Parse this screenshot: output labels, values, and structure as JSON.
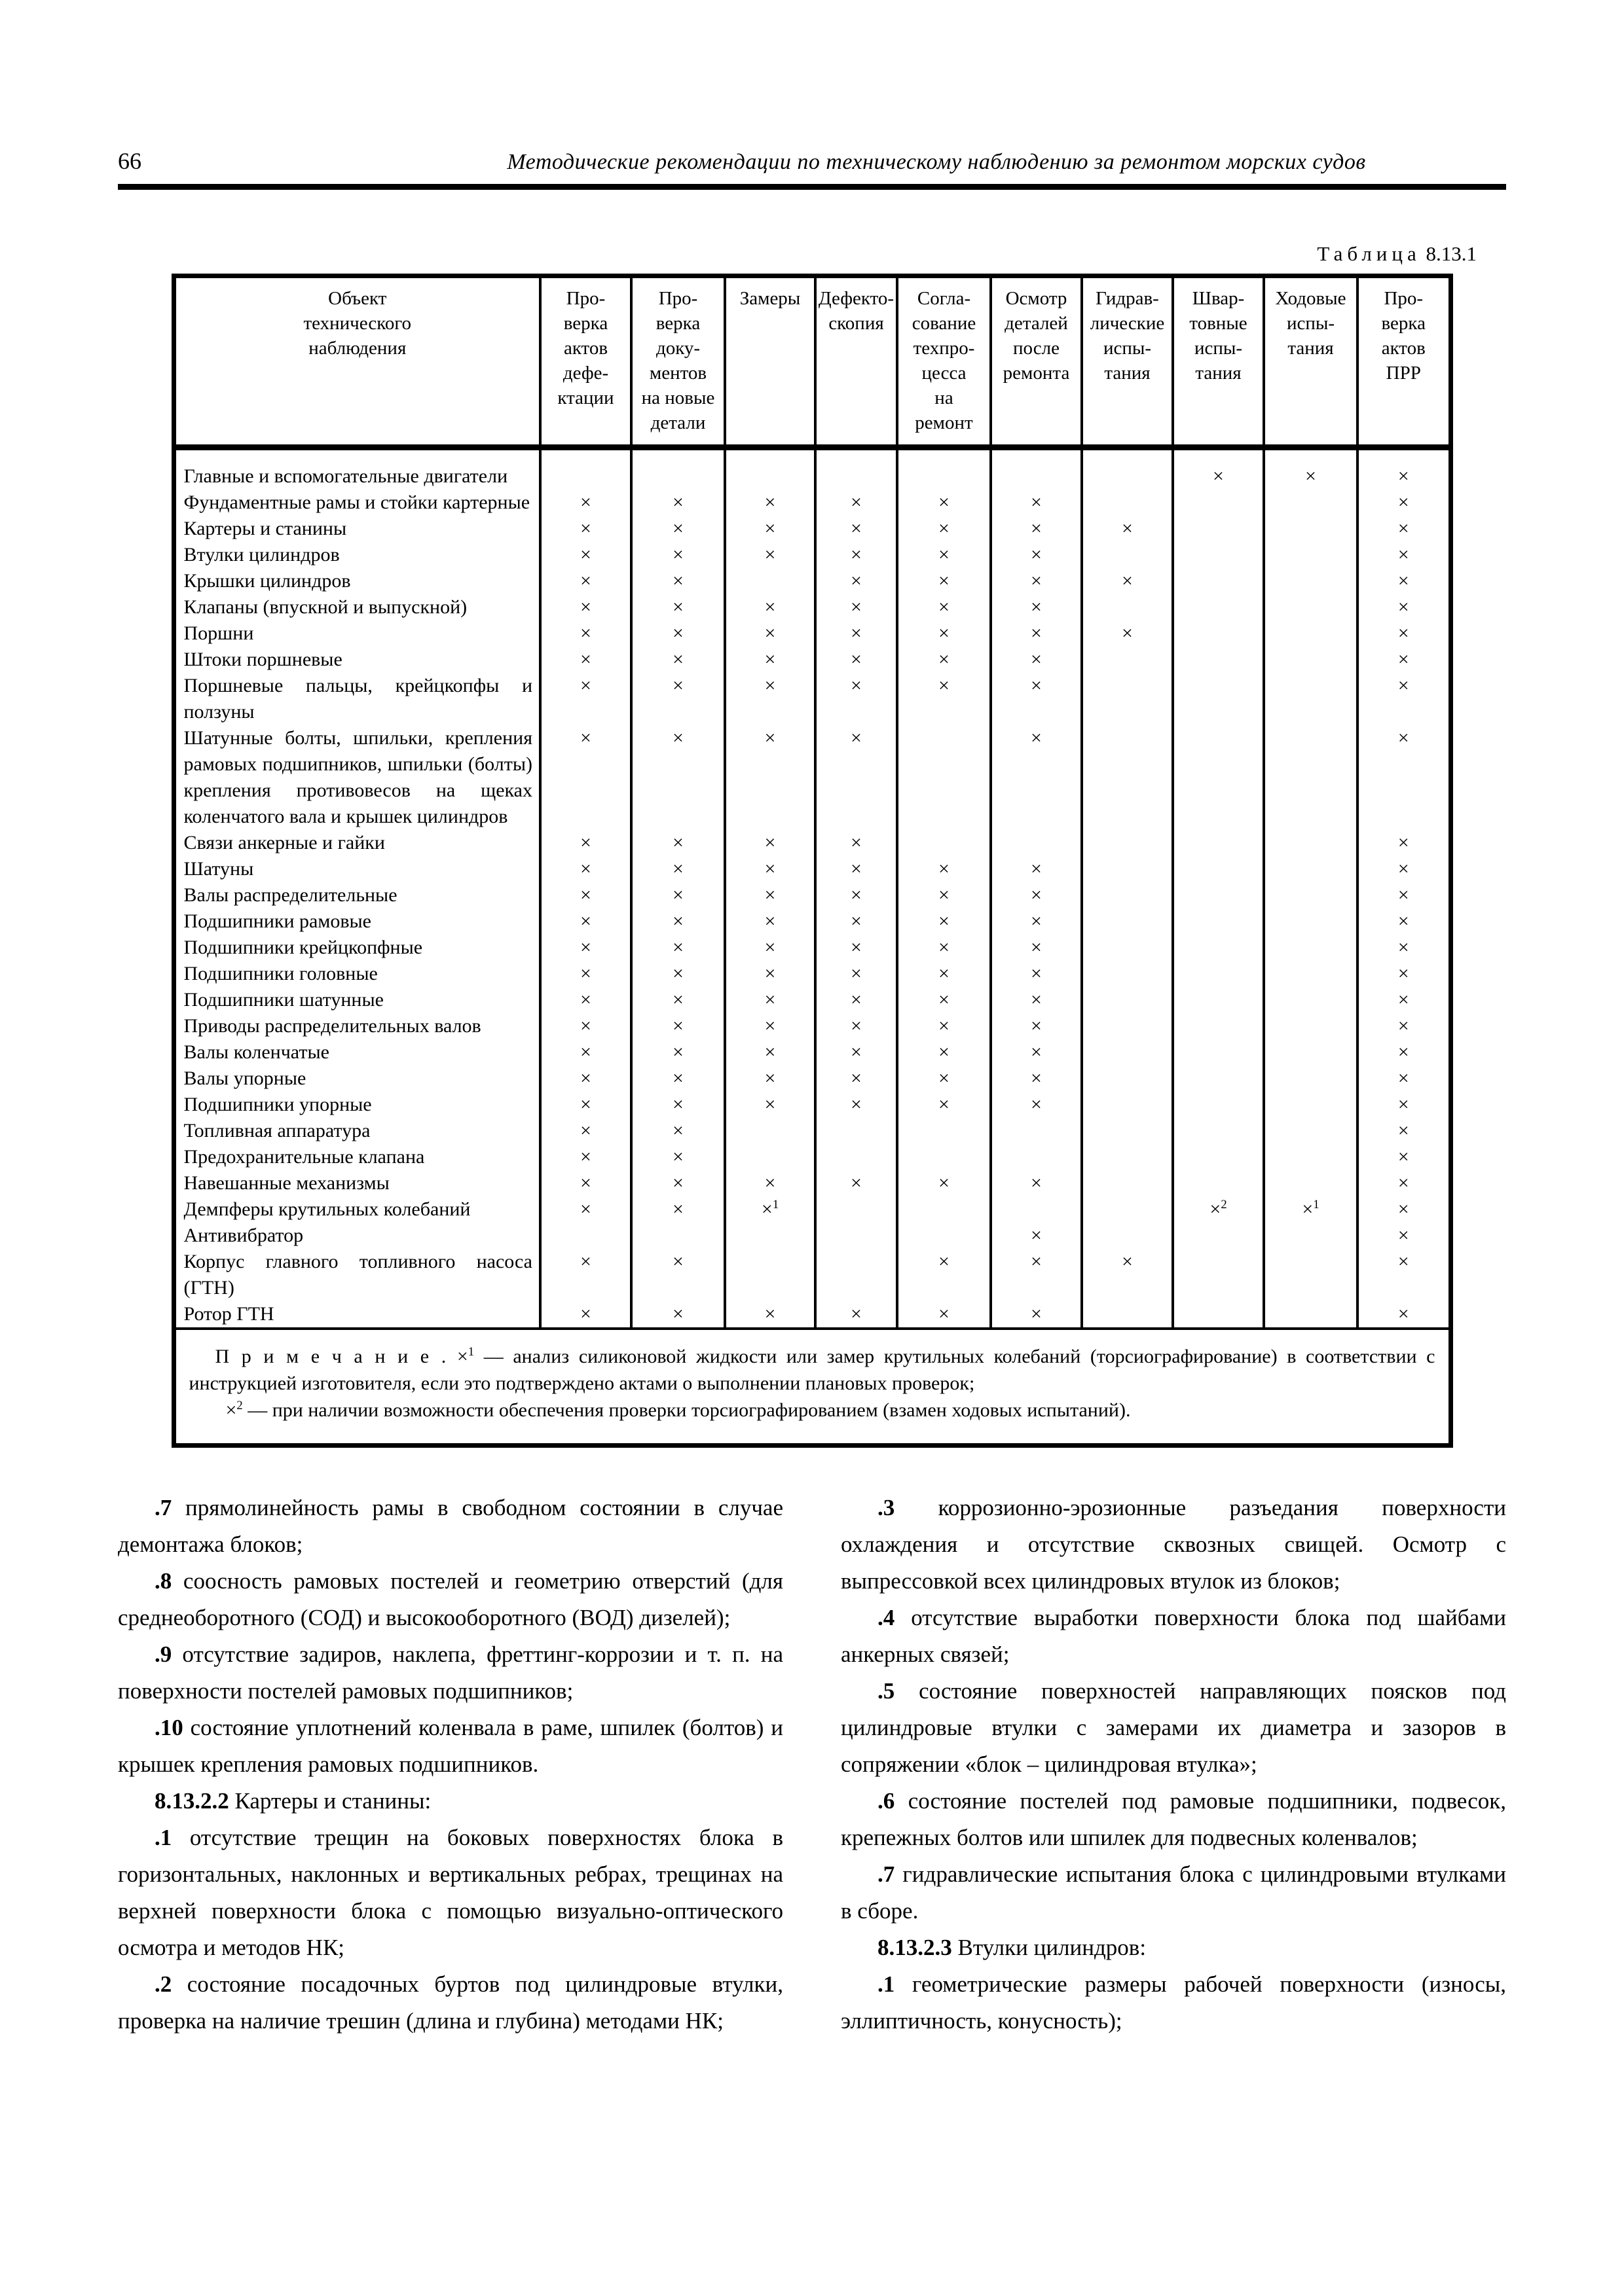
{
  "header": {
    "page_number": "66",
    "title": "Методические рекомендации по техническому наблюдению за ремонтом морских судов"
  },
  "table": {
    "caption_label": "Таблица",
    "caption_number": "8.13.1",
    "columns": [
      "Объект\nтехнического\nнаблюдения",
      "Про-\nверка\nактов\nдефе-\nктации",
      "Про-\nверка\nдоку-\nментов\nна новые\nдетали",
      "Замеры",
      "Дефекто-\nскопия",
      "Согла-\nсование\nтехпро-\nцесса\nна\nремонт",
      "Осмотр\nдеталей\nпосле\nремонта",
      "Гидрав-\nлические\nиспы-\nтания",
      "Швар-\nтовные\nиспы-\nтания",
      "Ходовые\nиспы-\nтания",
      "Про-\nверка\nактов\nПРР"
    ],
    "mark_glyph": "×",
    "rows": [
      {
        "label": "Главные и вспомогательные двигатели",
        "marks": [
          "",
          "",
          "",
          "",
          "",
          "",
          "",
          "×",
          "×",
          "×"
        ]
      },
      {
        "label": "Фундаментные рамы и стойки картерные",
        "marks": [
          "×",
          "×",
          "×",
          "×",
          "×",
          "×",
          "",
          "",
          "",
          "×"
        ]
      },
      {
        "label": "Картеры и станины",
        "marks": [
          "×",
          "×",
          "×",
          "×",
          "×",
          "×",
          "×",
          "",
          "",
          "×"
        ]
      },
      {
        "label": "Втулки цилиндров",
        "marks": [
          "×",
          "×",
          "×",
          "×",
          "×",
          "×",
          "",
          "",
          "",
          "×"
        ]
      },
      {
        "label": "Крышки цилиндров",
        "marks": [
          "×",
          "×",
          "",
          "×",
          "×",
          "×",
          "×",
          "",
          "",
          "×"
        ]
      },
      {
        "label": "Клапаны (впускной и выпускной)",
        "marks": [
          "×",
          "×",
          "×",
          "×",
          "×",
          "×",
          "",
          "",
          "",
          "×"
        ]
      },
      {
        "label": "Поршни",
        "marks": [
          "×",
          "×",
          "×",
          "×",
          "×",
          "×",
          "×",
          "",
          "",
          "×"
        ]
      },
      {
        "label": "Штоки поршневые",
        "marks": [
          "×",
          "×",
          "×",
          "×",
          "×",
          "×",
          "",
          "",
          "",
          "×"
        ]
      },
      {
        "label": "Поршневые пальцы, крейцкопфы и ползуны",
        "marks": [
          "×",
          "×",
          "×",
          "×",
          "×",
          "×",
          "",
          "",
          "",
          "×"
        ]
      },
      {
        "label": "Шатунные болты, шпильки, крепления рамовых подшипников, шпильки (болты) крепления противовесов на щеках коленчатого вала и крышек цилиндров",
        "marks": [
          "×",
          "×",
          "×",
          "×",
          "",
          "×",
          "",
          "",
          "",
          "×"
        ]
      },
      {
        "label": "Связи анкерные и гайки",
        "marks": [
          "×",
          "×",
          "×",
          "×",
          "",
          "",
          "",
          "",
          "",
          "×"
        ]
      },
      {
        "label": "Шатуны",
        "marks": [
          "×",
          "×",
          "×",
          "×",
          "×",
          "×",
          "",
          "",
          "",
          "×"
        ]
      },
      {
        "label": "Валы распределительные",
        "marks": [
          "×",
          "×",
          "×",
          "×",
          "×",
          "×",
          "",
          "",
          "",
          "×"
        ]
      },
      {
        "label": "Подшипники рамовые",
        "marks": [
          "×",
          "×",
          "×",
          "×",
          "×",
          "×",
          "",
          "",
          "",
          "×"
        ]
      },
      {
        "label": "Подшипники крейцкопфные",
        "marks": [
          "×",
          "×",
          "×",
          "×",
          "×",
          "×",
          "",
          "",
          "",
          "×"
        ]
      },
      {
        "label": "Подшипники головные",
        "marks": [
          "×",
          "×",
          "×",
          "×",
          "×",
          "×",
          "",
          "",
          "",
          "×"
        ]
      },
      {
        "label": "Подшипники шатунные",
        "marks": [
          "×",
          "×",
          "×",
          "×",
          "×",
          "×",
          "",
          "",
          "",
          "×"
        ]
      },
      {
        "label": "Приводы распределительных валов",
        "marks": [
          "×",
          "×",
          "×",
          "×",
          "×",
          "×",
          "",
          "",
          "",
          "×"
        ]
      },
      {
        "label": "Валы коленчатые",
        "marks": [
          "×",
          "×",
          "×",
          "×",
          "×",
          "×",
          "",
          "",
          "",
          "×"
        ]
      },
      {
        "label": "Валы упорные",
        "marks": [
          "×",
          "×",
          "×",
          "×",
          "×",
          "×",
          "",
          "",
          "",
          "×"
        ]
      },
      {
        "label": "Подшипники упорные",
        "marks": [
          "×",
          "×",
          "×",
          "×",
          "×",
          "×",
          "",
          "",
          "",
          "×"
        ]
      },
      {
        "label": "Топливная аппаратура",
        "marks": [
          "×",
          "×",
          "",
          "",
          "",
          "",
          "",
          "",
          "",
          "×"
        ]
      },
      {
        "label": "Предохранительные клапана",
        "marks": [
          "×",
          "×",
          "",
          "",
          "",
          "",
          "",
          "",
          "",
          "×"
        ]
      },
      {
        "label": "Навешанные механизмы",
        "marks": [
          "×",
          "×",
          "×",
          "×",
          "×",
          "×",
          "",
          "",
          "",
          "×"
        ]
      },
      {
        "label": "Демпферы крутильных колебаний",
        "marks": [
          "×",
          "×",
          "×1",
          "",
          "",
          "",
          "",
          "×2",
          "×1",
          "×"
        ]
      },
      {
        "label": "Антивибратор",
        "marks": [
          "",
          "",
          "",
          "",
          "",
          "×",
          "",
          "",
          "",
          "×"
        ]
      },
      {
        "label": "Корпус главного топливного насоса (ГТН)",
        "marks": [
          "×",
          "×",
          "",
          "",
          "×",
          "×",
          "×",
          "",
          "",
          "×"
        ]
      },
      {
        "label": "Ротор ГТН",
        "marks": [
          "×",
          "×",
          "×",
          "×",
          "×",
          "×",
          "",
          "",
          "",
          "×"
        ]
      }
    ],
    "note": {
      "label": "П р и м е ч а н и е .",
      "items": [
        {
          "sym": "×1",
          "text": "— анализ силиконовой жидкости или замер крутильных колебаний (торсиографирование) в соответствии с инструкцией изготовителя, если это подтверждено актами о выполнении плановых проверок;"
        },
        {
          "sym": "×2",
          "text": "— при наличии возможности обеспечения проверки торсиографированием (взамен ходовых испытаний)."
        }
      ]
    }
  },
  "body": {
    "left": [
      {
        "num": ".7",
        "text": "прямолинейность рамы в свободном состоянии в случае демонтажа блоков;"
      },
      {
        "num": ".8",
        "text": "соосность рамовых постелей и геометрию отверстий (для среднеоборотного (СОД) и высокооборотного (ВОД) дизелей);"
      },
      {
        "num": ".9",
        "text": "отсутствие задиров, наклепа, фреттинг-коррозии и т. п. на поверхности постелей рамовых подшипников;"
      },
      {
        "num": ".10",
        "text": "состояние уплотнений коленвала в раме, шпилек (болтов) и крышек крепления рамовых подшипников."
      },
      {
        "num": "8.13.2.2",
        "text": "Картеры и станины:"
      },
      {
        "num": ".1",
        "text": "отсутствие трещин на боковых поверхностях блока в горизонтальных, наклонных и вертикальных ребрах, трещинах на верхней поверхности блока с помощью визуально-оптического осмотра и методов НК;"
      },
      {
        "num": ".2",
        "text": "состояние посадочных буртов под цилиндровые втулки, проверка на наличие трешин (длина и глубина) методами НК;"
      }
    ],
    "right": [
      {
        "num": ".3",
        "text": "коррозионно-эрозионные разъедания поверхности охлаждения и отсутствие сквозных свищей. Осмотр с выпрессовкой всех цилиндровых втулок из блоков;"
      },
      {
        "num": ".4",
        "text": "отсутствие выработки поверхности блока под шайбами анкерных связей;"
      },
      {
        "num": ".5",
        "text": "состояние поверхностей направляющих поясков под цилиндровые втулки с замерами их диаметра и зазоров в сопряжении «блок – цилиндровая втулка»;"
      },
      {
        "num": ".6",
        "text": "состояние постелей под рамовые подшипники, подвесок, крепежных болтов или шпилек для подвесных коленвалов;"
      },
      {
        "num": ".7",
        "text": "гидравлические испытания блока с цилиндровыми втулками в сборе."
      },
      {
        "num": "8.13.2.3",
        "text": "Втулки цилиндров:"
      },
      {
        "num": ".1",
        "text": "геометрические размеры рабочей поверхности (износы, эллиптичность, конусность);"
      }
    ]
  }
}
